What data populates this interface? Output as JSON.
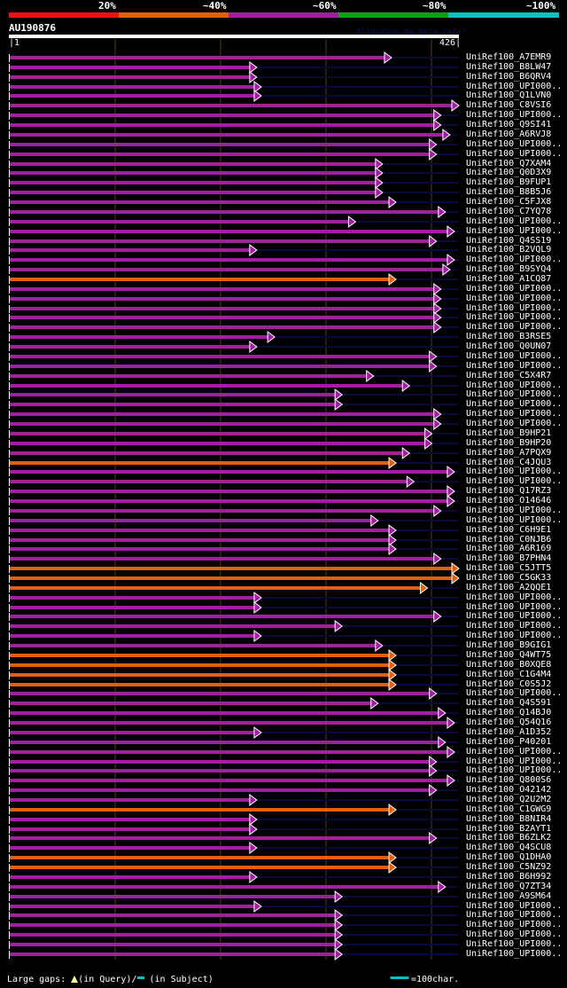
{
  "scale": {
    "labels": [
      "20%",
      "~40%",
      "~60%",
      "~80%",
      "~100%"
    ],
    "colors": [
      "#ee1111",
      "#e06010",
      "#a020a0",
      "#10a010",
      "#10c0c0"
    ]
  },
  "query": {
    "name": "AU190876",
    "start": "1",
    "end": "426",
    "version_text": "AlignView.pm Beta rel.7"
  },
  "colors": {
    "purple": "#a020a0",
    "orange": "#e06010",
    "subject_line": "#0a0a3a",
    "gap_marker": "#ffff99",
    "grid": "#4a4020",
    "arrow_border": "#ffffff"
  },
  "hits": [
    {
      "name": "UniRef100_A7EMR9",
      "end": 0.85,
      "color": "purple"
    },
    {
      "name": "UniRef100_B8LW47",
      "end": 0.55,
      "color": "purple"
    },
    {
      "name": "UniRef100_B6QRV4",
      "end": 0.55,
      "color": "purple"
    },
    {
      "name": "UniRef100_UPI000..",
      "end": 0.56,
      "color": "purple"
    },
    {
      "name": "UniRef100_Q1LVN0",
      "end": 0.56,
      "color": "purple"
    },
    {
      "name": "UniRef100_C8VSI6",
      "end": 1.0,
      "color": "purple"
    },
    {
      "name": "UniRef100_UPI000..",
      "end": 0.96,
      "color": "purple"
    },
    {
      "name": "UniRef100_Q9SI41",
      "end": 0.96,
      "color": "purple"
    },
    {
      "name": "UniRef100_A6RVJ8",
      "end": 0.98,
      "color": "purple"
    },
    {
      "name": "UniRef100_UPI000..",
      "end": 0.95,
      "color": "purple"
    },
    {
      "name": "UniRef100_UPI000..",
      "end": 0.95,
      "color": "purple"
    },
    {
      "name": "UniRef100_Q7XAM4",
      "end": 0.83,
      "color": "purple"
    },
    {
      "name": "UniRef100_Q0D3X9",
      "end": 0.83,
      "color": "purple"
    },
    {
      "name": "UniRef100_B9FUP1",
      "end": 0.83,
      "color": "purple"
    },
    {
      "name": "UniRef100_B8B5J6",
      "end": 0.83,
      "color": "purple"
    },
    {
      "name": "UniRef100_C5FJX8",
      "end": 0.86,
      "color": "purple"
    },
    {
      "name": "UniRef100_C7YQ78",
      "end": 0.97,
      "color": "purple"
    },
    {
      "name": "UniRef100_UPI000..",
      "end": 0.77,
      "color": "purple"
    },
    {
      "name": "UniRef100_UPI000..",
      "end": 0.99,
      "color": "purple"
    },
    {
      "name": "UniRef100_Q4SS19",
      "end": 0.95,
      "color": "purple"
    },
    {
      "name": "UniRef100_B2VQL9",
      "end": 0.55,
      "color": "purple"
    },
    {
      "name": "UniRef100_UPI000..",
      "end": 0.99,
      "color": "purple"
    },
    {
      "name": "UniRef100_B9SYQ4",
      "end": 0.98,
      "color": "purple"
    },
    {
      "name": "UniRef100_A1CQ87",
      "end": 0.86,
      "color": "orange"
    },
    {
      "name": "UniRef100_UPI000..",
      "end": 0.96,
      "color": "purple"
    },
    {
      "name": "UniRef100_UPI000..",
      "end": 0.96,
      "color": "purple"
    },
    {
      "name": "UniRef100_UPI000..",
      "end": 0.96,
      "color": "purple"
    },
    {
      "name": "UniRef100_UPI000..",
      "end": 0.96,
      "color": "purple"
    },
    {
      "name": "UniRef100_UPI000..",
      "end": 0.96,
      "color": "purple"
    },
    {
      "name": "UniRef100_B3RSE5",
      "end": 0.59,
      "color": "purple"
    },
    {
      "name": "UniRef100_Q0UN07",
      "end": 0.55,
      "color": "purple"
    },
    {
      "name": "UniRef100_UPI000..",
      "end": 0.95,
      "color": "purple"
    },
    {
      "name": "UniRef100_UPI000..",
      "end": 0.95,
      "color": "purple"
    },
    {
      "name": "UniRef100_C5X4R7",
      "end": 0.81,
      "color": "purple"
    },
    {
      "name": "UniRef100_UPI000..",
      "end": 0.89,
      "color": "purple"
    },
    {
      "name": "UniRef100_UPI000..",
      "end": 0.74,
      "color": "purple"
    },
    {
      "name": "UniRef100_UPI000..",
      "end": 0.74,
      "color": "purple"
    },
    {
      "name": "UniRef100_UPI000..",
      "end": 0.96,
      "color": "purple"
    },
    {
      "name": "UniRef100_UPI000..",
      "end": 0.96,
      "color": "purple"
    },
    {
      "name": "UniRef100_B9HP21",
      "end": 0.94,
      "color": "purple"
    },
    {
      "name": "UniRef100_B9HP20",
      "end": 0.94,
      "color": "purple"
    },
    {
      "name": "UniRef100_A7PQX9",
      "end": 0.89,
      "color": "purple"
    },
    {
      "name": "UniRef100_C4JQU3",
      "end": 0.86,
      "color": "orange"
    },
    {
      "name": "UniRef100_UPI000..",
      "end": 0.99,
      "color": "purple"
    },
    {
      "name": "UniRef100_UPI000..",
      "end": 0.9,
      "color": "purple"
    },
    {
      "name": "UniRef100_Q17RZ3",
      "end": 0.99,
      "color": "purple"
    },
    {
      "name": "UniRef100_O14646",
      "end": 0.99,
      "color": "purple"
    },
    {
      "name": "UniRef100_UPI000..",
      "end": 0.96,
      "color": "purple"
    },
    {
      "name": "UniRef100_UPI000..",
      "end": 0.82,
      "color": "purple"
    },
    {
      "name": "UniRef100_C6H9E1",
      "end": 0.86,
      "color": "purple"
    },
    {
      "name": "UniRef100_C0NJB6",
      "end": 0.86,
      "color": "purple"
    },
    {
      "name": "UniRef100_A6R169",
      "end": 0.86,
      "color": "purple"
    },
    {
      "name": "UniRef100_B7PHN4",
      "end": 0.96,
      "color": "purple"
    },
    {
      "name": "UniRef100_C5JTT5",
      "end": 1.0,
      "color": "orange"
    },
    {
      "name": "UniRef100_C5GK33",
      "end": 1.0,
      "color": "orange"
    },
    {
      "name": "UniRef100_A2QQE1",
      "end": 0.93,
      "color": "orange"
    },
    {
      "name": "UniRef100_UPI000..",
      "end": 0.56,
      "color": "purple"
    },
    {
      "name": "UniRef100_UPI000..",
      "end": 0.56,
      "color": "purple"
    },
    {
      "name": "UniRef100_UPI000..",
      "end": 0.96,
      "color": "purple"
    },
    {
      "name": "UniRef100_UPI000..",
      "end": 0.74,
      "color": "purple"
    },
    {
      "name": "UniRef100_UPI000..",
      "end": 0.56,
      "color": "purple"
    },
    {
      "name": "UniRef100_B9GIG1",
      "end": 0.83,
      "color": "purple"
    },
    {
      "name": "UniRef100_Q4WT75",
      "end": 0.86,
      "color": "orange"
    },
    {
      "name": "UniRef100_B0XQE8",
      "end": 0.86,
      "color": "orange"
    },
    {
      "name": "UniRef100_C1G4M4",
      "end": 0.86,
      "color": "orange"
    },
    {
      "name": "UniRef100_C0S5J2",
      "end": 0.86,
      "color": "orange"
    },
    {
      "name": "UniRef100_UPI000..",
      "end": 0.95,
      "color": "purple"
    },
    {
      "name": "UniRef100_Q4S591",
      "end": 0.82,
      "color": "purple"
    },
    {
      "name": "UniRef100_Q14BJ0",
      "end": 0.97,
      "color": "purple"
    },
    {
      "name": "UniRef100_Q54Q16",
      "end": 0.99,
      "color": "purple"
    },
    {
      "name": "UniRef100_A1D352",
      "end": 0.56,
      "color": "purple"
    },
    {
      "name": "UniRef100_P40201",
      "end": 0.97,
      "color": "purple"
    },
    {
      "name": "UniRef100_UPI000..",
      "end": 0.99,
      "color": "purple"
    },
    {
      "name": "UniRef100_UPI000..",
      "end": 0.95,
      "color": "purple"
    },
    {
      "name": "UniRef100_UPI000..",
      "end": 0.95,
      "color": "purple"
    },
    {
      "name": "UniRef100_Q800S6",
      "end": 0.99,
      "color": "purple"
    },
    {
      "name": "UniRef100_O42142",
      "end": 0.95,
      "color": "purple"
    },
    {
      "name": "UniRef100_Q2U2M2",
      "end": 0.55,
      "color": "purple"
    },
    {
      "name": "UniRef100_C1GWG9",
      "end": 0.86,
      "color": "orange"
    },
    {
      "name": "UniRef100_B8NIR4",
      "end": 0.55,
      "color": "purple"
    },
    {
      "name": "UniRef100_B2AYT1",
      "end": 0.55,
      "color": "purple"
    },
    {
      "name": "UniRef100_B6ZLK2",
      "end": 0.95,
      "color": "purple"
    },
    {
      "name": "UniRef100_Q4SCU8",
      "end": 0.55,
      "color": "purple"
    },
    {
      "name": "UniRef100_Q1DHA0",
      "end": 0.86,
      "color": "orange"
    },
    {
      "name": "UniRef100_C5NZ92",
      "end": 0.86,
      "color": "orange"
    },
    {
      "name": "UniRef100_B6H992",
      "end": 0.55,
      "color": "purple"
    },
    {
      "name": "UniRef100_Q7ZT34",
      "end": 0.97,
      "color": "purple"
    },
    {
      "name": "UniRef100_A9SM64",
      "end": 0.74,
      "color": "purple"
    },
    {
      "name": "UniRef100_UPI000..",
      "end": 0.56,
      "color": "purple"
    },
    {
      "name": "UniRef100_UPI000..",
      "end": 0.74,
      "color": "purple"
    },
    {
      "name": "UniRef100_UPI000..",
      "end": 0.74,
      "color": "purple"
    },
    {
      "name": "UniRef100_UPI000..",
      "end": 0.74,
      "color": "purple"
    },
    {
      "name": "UniRef100_UPI000..",
      "end": 0.74,
      "color": "purple"
    },
    {
      "name": "UniRef100_UPI000..",
      "end": 0.74,
      "color": "purple"
    }
  ],
  "footer": {
    "gaps_label": "Large gaps:",
    "query_label": "(in Query)/",
    "subject_label": " (in Subject)",
    "scale_label": "=100char."
  }
}
